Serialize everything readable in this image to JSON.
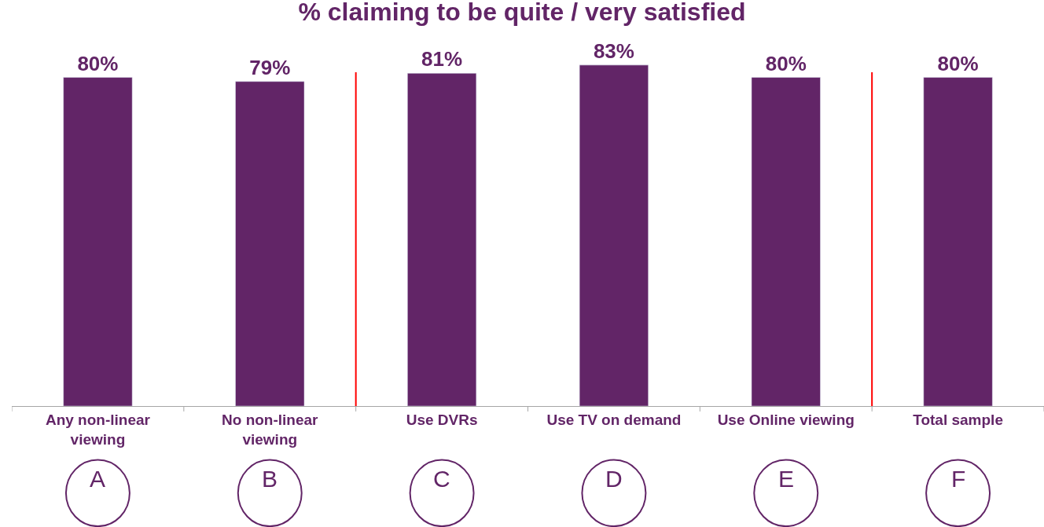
{
  "chart_data": {
    "type": "bar",
    "title": "% claiming to be quite / very satisfied",
    "categories": [
      "Any non-linear viewing",
      "No non-linear viewing",
      "Use DVRs",
      "Use TV on demand",
      "Use Online viewing",
      "Total sample"
    ],
    "values": [
      80,
      79,
      81,
      83,
      80,
      80
    ],
    "value_labels": [
      "80%",
      "79%",
      "81%",
      "83%",
      "80%",
      "80%"
    ],
    "color": "#622567",
    "annotations": [
      "A",
      "B",
      "C",
      "D",
      "E",
      "F"
    ]
  }
}
